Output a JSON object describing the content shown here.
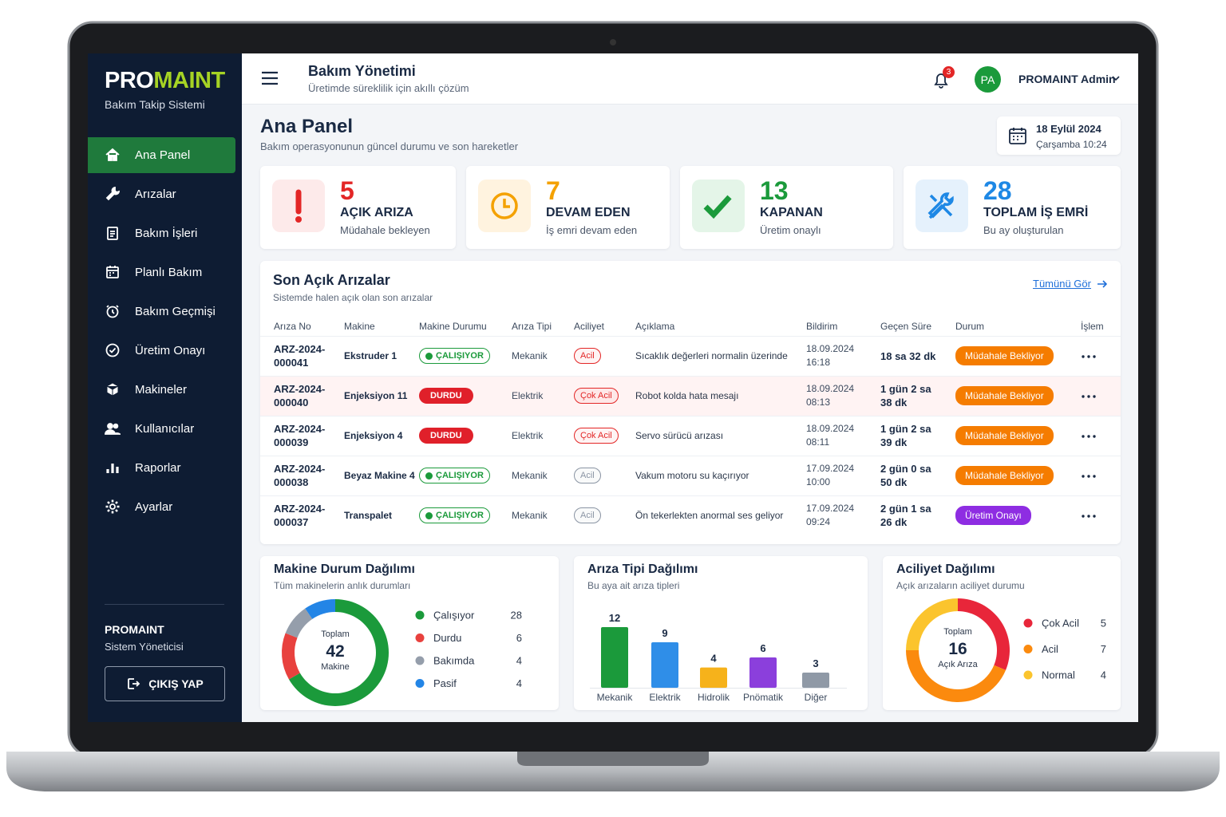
{
  "sidebar": {
    "brand_pro": "PRO",
    "brand_maint": "MAINT",
    "tagline": "Bakım Takip Sistemi",
    "menu": [
      "Ana Panel",
      "Arızalar",
      "Bakım İşleri",
      "Planlı Bakım",
      "Bakım Geçmişi",
      "Üretim Onayı",
      "Makineler",
      "Kullanıcılar",
      "Raporlar",
      "Ayarlar"
    ],
    "active": 0,
    "user": "PROMAINT",
    "role": "Sistem Yöneticisi",
    "logout": "ÇIKIŞ YAP"
  },
  "topbar": {
    "title": "Bakım Yönetimi",
    "subtitle": "Üretimde süreklilik için akıllı çözüm",
    "notifications": 3,
    "avatar": "PA",
    "user": "PROMAINT Admin"
  },
  "page": {
    "title": "Ana Panel",
    "subtitle": "Bakım operasyonunun güncel durumu ve son hareketler",
    "date": "18 Eylül 2024",
    "time": "Çarşamba 10:24"
  },
  "stats": [
    {
      "value": 5,
      "label": "AÇIK ARIZA",
      "note": "Müdahale bekleyen",
      "color": "#e32626",
      "bg": "#fdeaea"
    },
    {
      "value": 7,
      "label": "DEVAM EDEN",
      "note": "İş emri devam eden",
      "color": "#f4a100",
      "bg": "#fff3df"
    },
    {
      "value": 13,
      "label": "KAPANAN",
      "note": "Üretim onaylı",
      "color": "#1b9a3b",
      "bg": "#e4f5e8"
    },
    {
      "value": 28,
      "label": "TOPLAM İŞ EMRİ",
      "note": "Bu ay oluşturulan",
      "color": "#1e88e5",
      "bg": "#e5f1fc"
    }
  ],
  "faults": {
    "title": "Son Açık Arızalar",
    "subtitle": "Sistemde halen açık olan son arızalar",
    "link": "Tümünü Gör",
    "columns": [
      "Arıza No",
      "Makine",
      "Makine Durumu",
      "Arıza Tipi",
      "Aciliyet",
      "Açıklama",
      "Bildirim",
      "Geçen Süre",
      "Durum",
      "İşlem"
    ],
    "rows": [
      {
        "id": "ARZ-2024-000041",
        "machine": "Ekstruder 1",
        "status": "ÇALIŞIYOR",
        "status_color": "#1b9a3b",
        "status_filled": false,
        "type": "Mekanik",
        "urgency": "Acil",
        "urgency_color": "#e32626",
        "description": "Sıcaklık değerleri normalin üzerinde",
        "reported": "18.09.2024 16:18",
        "elapsed": "18 sa 32 dk",
        "state": "Müdahale Bekliyor",
        "state_color": "#f57c00",
        "highlight": false
      },
      {
        "id": "ARZ-2024-000040",
        "machine": "Enjeksiyon 11",
        "status": "DURDU",
        "status_color": "#e0202a",
        "status_filled": true,
        "type": "Elektrik",
        "urgency": "Çok Acil",
        "urgency_color": "#e32626",
        "description": "Robot kolda hata mesajı",
        "reported": "18.09.2024 08:13",
        "elapsed": "1 gün 2 sa 38 dk",
        "state": "Müdahale Bekliyor",
        "state_color": "#f57c00",
        "highlight": true
      },
      {
        "id": "ARZ-2024-000039",
        "machine": "Enjeksiyon 4",
        "status": "DURDU",
        "status_color": "#e0202a",
        "status_filled": true,
        "type": "Elektrik",
        "urgency": "Çok Acil",
        "urgency_color": "#e32626",
        "description": "Servo sürücü arızası",
        "reported": "18.09.2024 08:11",
        "elapsed": "1 gün 2 sa 39 dk",
        "state": "Müdahale Bekliyor",
        "state_color": "#f57c00",
        "highlight": false
      },
      {
        "id": "ARZ-2024-000038",
        "machine": "Beyaz Makine 4",
        "status": "ÇALIŞIYOR",
        "status_color": "#1b9a3b",
        "status_filled": false,
        "type": "Mekanik",
        "urgency": "Acil",
        "urgency_color": "#8a94a3",
        "description": "Vakum motoru su kaçırıyor",
        "reported": "17.09.2024 10:00",
        "elapsed": "2 gün 0 sa 50 dk",
        "state": "Müdahale Bekliyor",
        "state_color": "#f57c00",
        "highlight": false
      },
      {
        "id": "ARZ-2024-000037",
        "machine": "Transpalet",
        "status": "ÇALIŞIYOR",
        "status_color": "#1b9a3b",
        "status_filled": false,
        "type": "Mekanik",
        "urgency": "Acil",
        "urgency_color": "#8a94a3",
        "description": "Ön tekerlekten anormal ses geliyor",
        "reported": "17.09.2024 09:24",
        "elapsed": "2 gün 1 sa 26 dk",
        "state": "Üretim Onayı",
        "state_color": "#8e2de2",
        "highlight": false
      }
    ]
  },
  "machine_status": {
    "type": "donut",
    "title": "Makine Durum Dağılımı",
    "subtitle": "Tüm makinelerin anlık durumları",
    "total_label": "Toplam",
    "total": 42,
    "total_unit": "Makine",
    "items": [
      {
        "name": "Çalışıyor",
        "value": 28,
        "color": "#1b9a3b"
      },
      {
        "name": "Durdu",
        "value": 6,
        "color": "#e8413e"
      },
      {
        "name": "Bakımda",
        "value": 4,
        "color": "#959eab"
      },
      {
        "name": "Pasif",
        "value": 4,
        "color": "#2385e6"
      }
    ]
  },
  "fault_types": {
    "type": "bar",
    "title": "Arıza Tipi Dağılımı",
    "subtitle": "Bu aya ait arıza tipleri",
    "categories": [
      "Mekanik",
      "Elektrik",
      "Hidrolik",
      "Pnömatik",
      "Diğer"
    ],
    "values": [
      12,
      9,
      4,
      6,
      3
    ],
    "colors": [
      "#1b9a3b",
      "#2f8ee8",
      "#f6b21b",
      "#8b3fdc",
      "#8f99a6"
    ],
    "ylim": [
      0,
      15
    ]
  },
  "urgency": {
    "type": "donut",
    "title": "Aciliyet Dağılımı",
    "subtitle": "Açık arızaların aciliyet durumu",
    "total_label": "Toplam",
    "total": 16,
    "total_unit": "Açık Arıza",
    "items": [
      {
        "name": "Çok Acil",
        "value": 5,
        "color": "#e8263a"
      },
      {
        "name": "Acil",
        "value": 7,
        "color": "#fb8a0e"
      },
      {
        "name": "Normal",
        "value": 4,
        "color": "#fbc42d"
      }
    ]
  }
}
